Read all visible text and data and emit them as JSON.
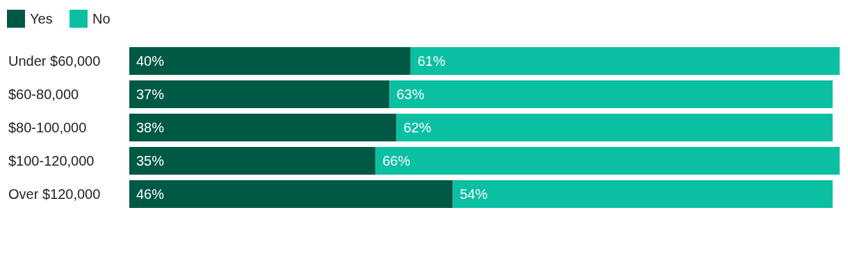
{
  "chart_data": {
    "type": "bar",
    "orientation": "horizontal",
    "stacked": true,
    "legend": "top left",
    "categories": [
      "Under $60,000",
      "$60-80,000",
      "$80-100,000",
      "$100-120,000",
      "Over $120,000"
    ],
    "series": [
      {
        "name": "Yes",
        "color": "#005944",
        "values": [
          40,
          37,
          38,
          35,
          46
        ],
        "value_labels": [
          "40%",
          "37%",
          "38%",
          "35%",
          "46%"
        ]
      },
      {
        "name": "No",
        "color": "#0bbfa2",
        "values": [
          61,
          63,
          62,
          66,
          54
        ],
        "value_labels": [
          "61%",
          "63%",
          "62%",
          "66%",
          "54%"
        ]
      }
    ]
  }
}
